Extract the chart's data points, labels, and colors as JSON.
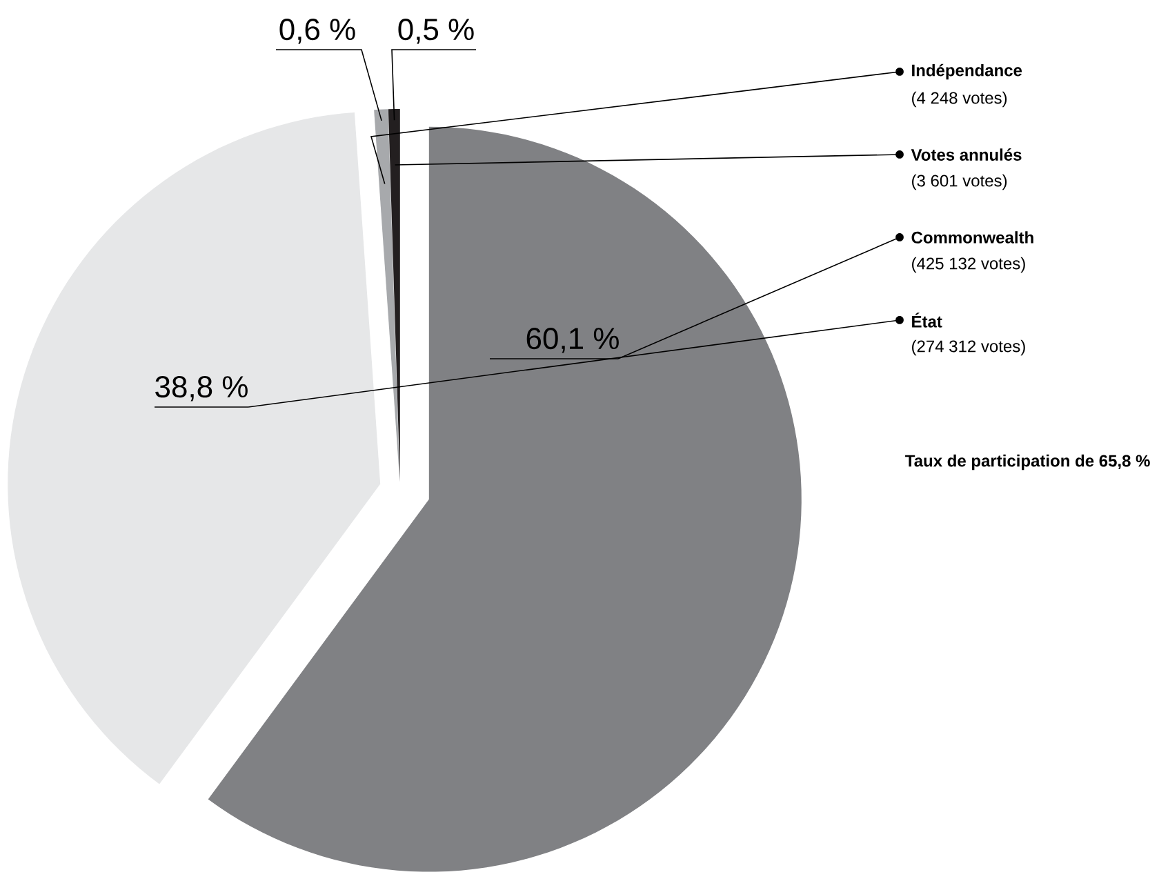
{
  "chart_data": {
    "type": "pie",
    "categories": [
      "Indépendance",
      "Votes annulés",
      "Commonwealth",
      "État"
    ],
    "values": [
      0.6,
      0.5,
      60.1,
      38.8
    ],
    "value_labels": [
      "0,6 %",
      "0,5 %",
      "60,1 %",
      "38,8 %"
    ],
    "colors": [
      "#a7a9ac",
      "#231f20",
      "#808184",
      "#e6e7e8"
    ],
    "annotations": [
      "(4 248 votes)",
      "(3 601 votes)",
      "(425 132 votes)",
      "(274 312 votes)",
      "Taux de participation de 65,8 %"
    ]
  }
}
